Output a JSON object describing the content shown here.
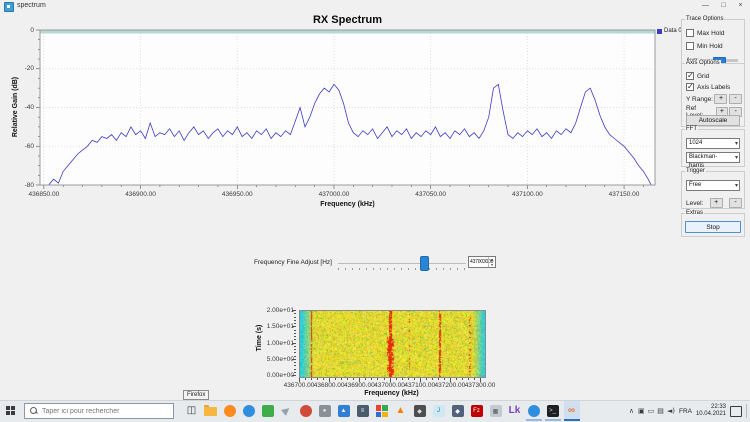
{
  "window": {
    "title": "spectrum",
    "minimize": "—",
    "maximize": "□",
    "close": "×"
  },
  "chart_data": [
    {
      "type": "line",
      "title": "RX Spectrum",
      "xlabel": "Frequency (kHz)",
      "ylabel": "Relative Gain (dB)",
      "legend": "Data 0",
      "line_color": "#3b3bc4",
      "grid": true,
      "legend_position": "top-right",
      "xlim": [
        436848,
        437166
      ],
      "ylim": [
        -80,
        0
      ],
      "xticks": [
        436850,
        436900,
        436950,
        437000,
        437050,
        437100,
        437150
      ],
      "xtick_labels": [
        "436850.00",
        "436900.00",
        "436950.00",
        "437000.00",
        "437050.00",
        "437100.00",
        "437150.00"
      ],
      "yticks": [
        0,
        -20,
        -40,
        -60,
        -80
      ],
      "ytick_labels": [
        "0",
        "-20",
        "-40",
        "-60",
        "-80"
      ],
      "freq_start_khz": 436850,
      "freq_step_khz": 2.5,
      "values_db": [
        -86,
        -80,
        -77,
        -79,
        -73,
        -70,
        -67,
        -64,
        -62,
        -60,
        -57,
        -58,
        -55,
        -56,
        -54,
        -57,
        -53,
        -55,
        -50,
        -54,
        -52,
        -56,
        -48,
        -55,
        -53,
        -54,
        -51,
        -55,
        -52,
        -57,
        -53,
        -50,
        -54,
        -52,
        -56,
        -53,
        -51,
        -55,
        -52,
        -54,
        -50,
        -55,
        -53,
        -56,
        -52,
        -54,
        -51,
        -56,
        -53,
        -55,
        -52,
        -54,
        -47,
        -40,
        -50,
        -45,
        -38,
        -33,
        -30,
        -32,
        -28,
        -31,
        -38,
        -48,
        -53,
        -55,
        -52,
        -54,
        -51,
        -56,
        -53,
        -50,
        -55,
        -52,
        -54,
        -51,
        -56,
        -53,
        -55,
        -52,
        -54,
        -50,
        -55,
        -53,
        -56,
        -52,
        -54,
        -51,
        -55,
        -53,
        -56,
        -52,
        -45,
        -30,
        -28,
        -42,
        -54,
        -56,
        -53,
        -55,
        -52,
        -54,
        -51,
        -55,
        -53,
        -56,
        -52,
        -54,
        -51,
        -53,
        -48,
        -40,
        -32,
        -30,
        -36,
        -44,
        -50,
        -54,
        -56,
        -58,
        -60,
        -63,
        -66,
        -70,
        -73,
        -77,
        -82
      ]
    },
    {
      "type": "heatmap",
      "xlabel": "Frequency (kHz)",
      "ylabel": "Time (s)",
      "xlim": [
        436700,
        437313
      ],
      "ylim": [
        0,
        20
      ],
      "xticks": [
        436700,
        436800,
        436900,
        437000,
        437100,
        437200,
        437300
      ],
      "xtick_labels": [
        "436700.00",
        "436800.00",
        "436900.00",
        "437000.00",
        "437100.00",
        "437200.00",
        "437300.00"
      ],
      "yticks": [
        20,
        15,
        10,
        5,
        0
      ],
      "ytick_labels": [
        "2.00e+01",
        "1.50e+01",
        "1.00e+01",
        "5.00e+00",
        "0.00e+00"
      ],
      "palette": {
        "noise_floor": "#ddd820",
        "band_edge": "#18c8c8",
        "signal": "#e02000"
      },
      "signal_stripes": [
        {
          "khz": 436737,
          "width": 1,
          "intensity": 0.75,
          "dash": false,
          "blob": false
        },
        {
          "khz": 436997,
          "width": 3,
          "intensity": 0.8,
          "dash": false,
          "blob": true
        },
        {
          "khz": 437060,
          "width": 1,
          "intensity": 0.5,
          "dash": true,
          "blob": false
        },
        {
          "khz": 437165,
          "width": 2,
          "intensity": 0.75,
          "dash": false,
          "blob": false
        },
        {
          "khz": 437263,
          "width": 2,
          "intensity": 0.45,
          "dash": true,
          "blob": false
        }
      ]
    }
  ],
  "fine_adjust": {
    "label": "Frequency Fine Adjust [Hz]",
    "value": "437003000",
    "slider_pos": 0.68
  },
  "panel": {
    "trace_options": {
      "title": "Trace Options",
      "max_hold": {
        "label": "Max Hold",
        "checked": false
      },
      "min_hold": {
        "label": "Min Hold",
        "checked": false
      },
      "avg_label": "Avg:"
    },
    "axis_options": {
      "title": "Axis Options",
      "grid": {
        "label": "Grid",
        "checked": true
      },
      "axis_labels": {
        "label": "Axis Labels",
        "checked": true
      },
      "y_range_label": "Y Range:",
      "ref_level_label": "Ref Level:",
      "plus": "+",
      "minus": "-",
      "autoscale": "Autoscale"
    },
    "fft": {
      "title": "FFT",
      "size": "1024",
      "window": "Blackman-harris"
    },
    "trigger": {
      "title": "Trigger",
      "mode": "Free",
      "level_label": "Level:",
      "plus": "+",
      "minus": "-"
    },
    "extras": {
      "title": "Extras",
      "stop": "Stop"
    }
  },
  "taskbar": {
    "search_placeholder": "Taper ici pour rechercher",
    "tooltip": "Firefox",
    "pinned": [
      {
        "name": "task-view-button",
        "kind": "glyph",
        "glyph": "◫",
        "fg": "#3a3a3a"
      },
      {
        "name": "file-explorer-icon",
        "kind": "folder"
      },
      {
        "name": "firefox-icon",
        "kind": "circle",
        "bg": "#ff8a1e"
      },
      {
        "name": "edge-icon",
        "kind": "circle",
        "bg": "#2f8fde"
      },
      {
        "name": "greenshot-icon",
        "kind": "square",
        "bg": "#3fae49"
      },
      {
        "name": "mail-icon",
        "kind": "glyph",
        "glyph": "▶",
        "fg": "#93a2ad",
        "rotate": -40
      },
      {
        "name": "pinball-icon",
        "kind": "circle",
        "bg": "#d04a3a"
      },
      {
        "name": "camera-icon",
        "kind": "square",
        "bg": "#8a9097",
        "glyph": "●",
        "fg": "#e8e8e8"
      },
      {
        "name": "photos-icon",
        "kind": "square",
        "bg": "#2f7fd4",
        "glyph": "▲",
        "fg": "#ffffff"
      },
      {
        "name": "documents-icon",
        "kind": "square",
        "bg": "#4a5b6b",
        "glyph": "≡",
        "fg": "#ffffff"
      },
      {
        "name": "office-icon",
        "kind": "grid"
      },
      {
        "name": "vlc-icon",
        "kind": "glyph",
        "glyph": "▲",
        "fg": "#ff7d00"
      },
      {
        "name": "paint-icon",
        "kind": "square",
        "bg": "#4d4d4d",
        "glyph": "◆",
        "fg": "#dddddd"
      },
      {
        "name": "java-icon",
        "kind": "square",
        "bg": "#cfe9f3",
        "text": "J",
        "fg": "#1c75bc"
      },
      {
        "name": "gimp-icon",
        "kind": "square",
        "bg": "#53627c",
        "glyph": "◆",
        "fg": "#ffffff"
      },
      {
        "name": "filezilla-icon",
        "kind": "square",
        "bg": "#c00000",
        "text": "Fz",
        "fg": "#ffffff"
      },
      {
        "name": "generic-app-icon",
        "kind": "square",
        "bg": "#c2c9d0",
        "glyph": "▦",
        "fg": "#555555"
      },
      {
        "name": "link-app-icon",
        "kind": "text",
        "text": "Lk",
        "fg": "#7a3fbf"
      },
      {
        "name": "edge-running-icon",
        "kind": "circle",
        "bg": "#2f8fde",
        "running": true
      },
      {
        "name": "terminal-icon",
        "kind": "square",
        "bg": "#1d1f21",
        "text": ">_",
        "fg": "#d8d8d8",
        "running": true
      },
      {
        "name": "gnuradio-icon",
        "kind": "text",
        "text": "∞",
        "fg": "#e8762c",
        "active": true
      }
    ],
    "tray": {
      "chevron": "∧",
      "icons": [
        "▣",
        "▭",
        "▤",
        "◄)"
      ],
      "lang": "FRA",
      "time": "22:33",
      "date": "10.04.2021"
    }
  }
}
